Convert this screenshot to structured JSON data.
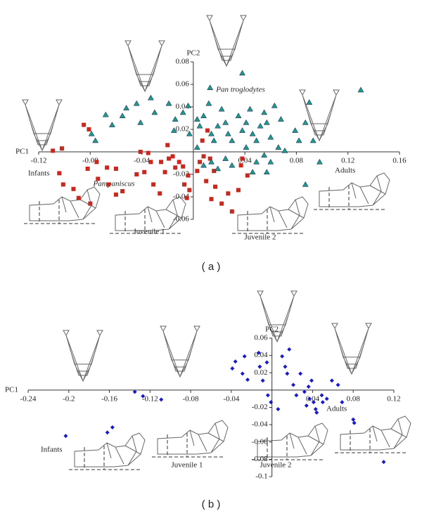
{
  "chart_data": [
    {
      "type": "scatter",
      "caption": "( a )",
      "x_label": "PC1",
      "y_label": "PC2",
      "xlim": [
        -0.12,
        0.16
      ],
      "xticks": [
        -0.12,
        -0.08,
        -0.04,
        0.04,
        0.08,
        0.12,
        0.16
      ],
      "ylim": [
        -0.06,
        0.08
      ],
      "yticks": [
        -0.06,
        -0.04,
        -0.02,
        0.02,
        0.04,
        0.06,
        0.08
      ],
      "annotations": [
        "Infants",
        "Adults",
        "Juvenile 1",
        "Juvenile 2"
      ],
      "series": [
        {
          "name": "Pan paniscus",
          "color": "#c8281e",
          "marker": "square",
          "x": [
            -0.085,
            -0.081,
            -0.102,
            -0.109,
            -0.104,
            -0.101,
            -0.093,
            -0.089,
            -0.08,
            -0.082,
            -0.075,
            -0.074,
            -0.067,
            -0.066,
            -0.06,
            -0.06,
            -0.055,
            -0.044,
            -0.041,
            -0.038,
            -0.035,
            -0.033,
            -0.031,
            -0.026,
            -0.025,
            -0.019,
            -0.016,
            -0.022,
            -0.014,
            -0.011,
            -0.008,
            -0.007,
            -0.003,
            -0.005,
            -0.004,
            0.003,
            0.005,
            0.008,
            0.013,
            0.01,
            0.014,
            0.017,
            0.022,
            0.016,
            0.027,
            0.03,
            0.035,
            0.038,
            0.042,
            0.037,
            0.007,
            0.011,
            -0.02
          ],
          "y": [
            0.024,
            0.02,
            0.003,
            0.001,
            -0.019,
            -0.029,
            -0.033,
            -0.041,
            -0.046,
            -0.015,
            -0.009,
            -0.024,
            -0.014,
            -0.029,
            -0.015,
            -0.038,
            -0.035,
            -0.02,
            0.0,
            -0.018,
            -0.001,
            -0.009,
            -0.029,
            -0.037,
            -0.009,
            -0.006,
            -0.004,
            -0.018,
            -0.014,
            -0.009,
            -0.013,
            -0.029,
            -0.034,
            -0.041,
            -0.021,
            -0.017,
            -0.009,
            -0.004,
            -0.006,
            -0.026,
            -0.042,
            -0.031,
            -0.046,
            -0.017,
            -0.037,
            -0.053,
            -0.034,
            -0.006,
            -0.021,
            -0.012,
            0.01,
            0.019,
            0.006
          ]
        },
        {
          "name": "Pan troglodytes",
          "color": "#1f9a8a",
          "marker": "triangle",
          "x": [
            0.038,
            0.013,
            -0.079,
            -0.076,
            -0.068,
            -0.063,
            -0.055,
            -0.052,
            -0.044,
            -0.041,
            -0.033,
            -0.03,
            -0.019,
            -0.014,
            -0.015,
            -0.008,
            -0.004,
            -0.003,
            0.003,
            0.005,
            0.008,
            0.012,
            0.014,
            0.016,
            0.019,
            0.022,
            0.025,
            0.027,
            0.03,
            0.035,
            0.038,
            0.041,
            0.044,
            0.046,
            0.049,
            0.052,
            0.055,
            0.057,
            0.06,
            0.063,
            0.014,
            0.019,
            0.025,
            0.03,
            0.041,
            0.049,
            0.055,
            0.057,
            0.066,
            0.071,
            0.068,
            0.079,
            0.082,
            0.087,
            0.09,
            0.093,
            0.098,
            0.087,
            0.13,
            0.003,
            0.008,
            0.046,
            0.06
          ],
          "y": [
            0.07,
            0.057,
            0.016,
            0.01,
            0.033,
            0.024,
            0.032,
            0.039,
            0.043,
            0.026,
            0.048,
            0.035,
            0.043,
            0.029,
            0.019,
            0.035,
            0.041,
            0.016,
            0.029,
            0.023,
            0.032,
            0.043,
            0.016,
            0.01,
            0.023,
            0.038,
            0.026,
            0.016,
            0.01,
            0.032,
            0.019,
            0.026,
            0.038,
            0.016,
            0.01,
            0.023,
            0.035,
            0.026,
            0.013,
            0.041,
            -0.009,
            -0.015,
            -0.006,
            -0.012,
            0.004,
            -0.009,
            -0.003,
            -0.018,
            0.004,
            0.001,
            0.029,
            0.019,
            0.01,
            0.026,
            0.044,
            0.01,
            -0.009,
            -0.029,
            0.055,
            0.004,
            -0.012,
            -0.018,
            -0.009
          ]
        }
      ]
    },
    {
      "type": "scatter",
      "caption": "( b )",
      "x_label": "PC1",
      "y_label": "PC2",
      "xlim": [
        -0.24,
        0.12
      ],
      "xticks": [
        -0.24,
        -0.2,
        -0.16,
        -0.12,
        -0.08,
        -0.04,
        0.04,
        0.08,
        0.12
      ],
      "ylim": [
        -0.1,
        0.06
      ],
      "yticks": [
        -0.1,
        -0.08,
        -0.06,
        -0.04,
        -0.02,
        0.02,
        0.04,
        0.06
      ],
      "annotations": [
        "Infants",
        "Adults",
        "Juvenile 1",
        "Juvenile 2"
      ],
      "series": [
        {
          "color": "#1a1acc",
          "marker": "diamond",
          "x": [
            -0.203,
            -0.162,
            -0.157,
            -0.135,
            -0.127,
            -0.109,
            -0.036,
            -0.039,
            -0.027,
            -0.029,
            -0.024,
            -0.013,
            -0.012,
            -0.005,
            -0.004,
            -0.009,
            -0.001,
            0.006,
            0.01,
            0.013,
            0.015,
            0.017,
            0.021,
            0.024,
            0.028,
            0.032,
            0.034,
            0.036,
            0.037,
            0.039,
            0.041,
            0.043,
            0.044,
            0.049,
            0.05,
            0.054,
            0.059,
            0.065,
            0.069,
            0.08,
            0.081,
            0.11
          ],
          "y": [
            -0.053,
            -0.049,
            -0.043,
            -0.002,
            -0.007,
            -0.011,
            0.033,
            0.025,
            0.039,
            0.019,
            0.012,
            0.043,
            0.027,
            0.032,
            -0.006,
            0.011,
            -0.014,
            -0.022,
            0.039,
            0.027,
            0.019,
            0.047,
            0.006,
            -0.006,
            0.019,
            -0.002,
            -0.018,
            0.004,
            -0.01,
            0.011,
            -0.014,
            -0.022,
            -0.026,
            -0.006,
            -0.014,
            -0.01,
            0.011,
            0.006,
            -0.014,
            -0.034,
            -0.038,
            -0.083
          ]
        }
      ]
    }
  ]
}
